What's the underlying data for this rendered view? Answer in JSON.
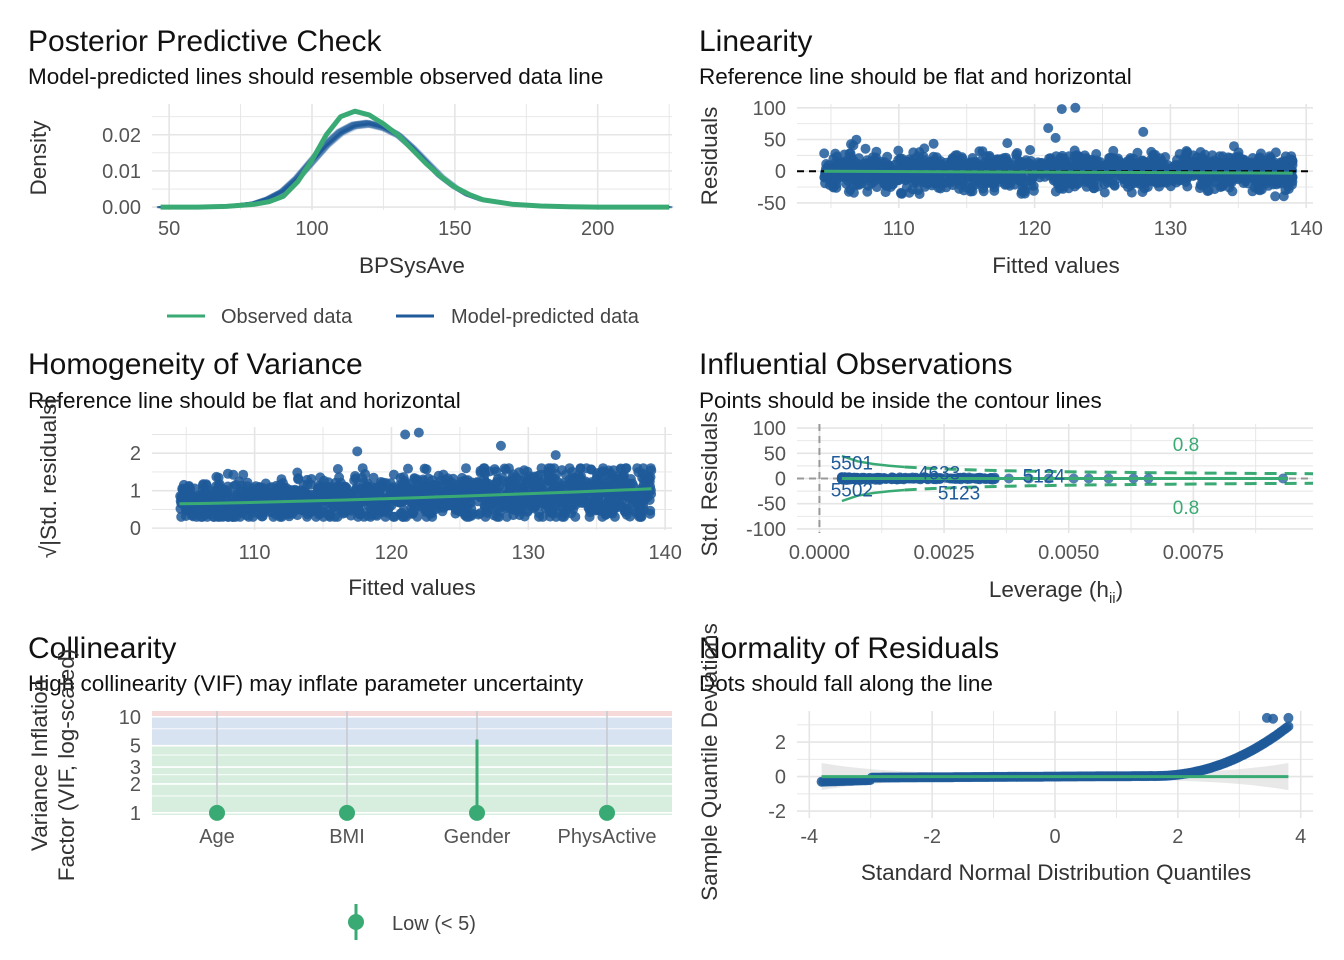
{
  "colors": {
    "observed": "#3AAA74",
    "predicted": "#1F5A9A",
    "points": "#1F5A9A",
    "reference": "#3AAA74",
    "grid": "#E5E5E5",
    "band_high": "#F2C9C9",
    "band_moderate": "#D7E3F1",
    "band_low": "#D7EEDF"
  },
  "chart_data": [
    {
      "id": "ppc",
      "type": "line",
      "title": "Posterior Predictive Check",
      "subtitle": "Model-predicted lines should resemble observed data line",
      "xlabel": "BPSysAve",
      "ylabel": "Density",
      "xlim": [
        44,
        226
      ],
      "ylim": [
        -0.0008,
        0.0285
      ],
      "xticks": [
        50,
        100,
        150,
        200
      ],
      "yticks": [
        0.0,
        0.01,
        0.02
      ],
      "ytick_labels": [
        "0.00",
        "0.01",
        "0.02"
      ],
      "series": [
        {
          "name": "Observed data",
          "x": [
            47,
            60,
            70,
            80,
            85,
            90,
            95,
            100,
            105,
            110,
            115,
            120,
            125,
            130,
            135,
            140,
            145,
            150,
            155,
            160,
            170,
            180,
            190,
            200,
            210,
            225
          ],
          "y": [
            0.0,
            0.0,
            0.0002,
            0.0008,
            0.0015,
            0.003,
            0.007,
            0.013,
            0.02,
            0.025,
            0.0265,
            0.0255,
            0.023,
            0.02,
            0.016,
            0.012,
            0.0085,
            0.0055,
            0.0035,
            0.002,
            0.0008,
            0.0003,
            0.0001,
            0.0,
            0.0,
            0.0
          ]
        },
        {
          "name": "Model-predicted data",
          "x": [
            47,
            60,
            70,
            80,
            85,
            90,
            95,
            100,
            105,
            110,
            115,
            120,
            125,
            130,
            135,
            140,
            145,
            150,
            155,
            160,
            170,
            180,
            190,
            200,
            210,
            225
          ],
          "y": [
            0.0,
            0.0,
            0.0003,
            0.0012,
            0.0025,
            0.0045,
            0.008,
            0.0125,
            0.017,
            0.0205,
            0.0225,
            0.023,
            0.022,
            0.02,
            0.0165,
            0.0125,
            0.0085,
            0.0055,
            0.0032,
            0.0018,
            0.0007,
            0.0002,
            0.0001,
            0.0,
            0.0,
            0.0
          ]
        }
      ],
      "legend": {
        "position": "bottom",
        "entries": [
          "Observed data",
          "Model-predicted data"
        ]
      }
    },
    {
      "id": "linearity",
      "type": "scatter",
      "title": "Linearity",
      "subtitle": "Reference line should be flat and horizontal",
      "xlabel": "Fitted values",
      "ylabel": "Residuals",
      "xlim": [
        102.5,
        140.5
      ],
      "ylim": [
        -58,
        106
      ],
      "xticks": [
        110,
        120,
        130,
        140
      ],
      "yticks": [
        -50,
        0,
        50,
        100
      ],
      "points": {
        "n": 2500,
        "x_range": [
          104.5,
          139
        ],
        "residual_sd": 14
      },
      "reference_line": {
        "x": [
          104.5,
          139
        ],
        "y": [
          0,
          -3
        ]
      },
      "hline": 0
    },
    {
      "id": "homogeneity",
      "type": "scatter",
      "title": "Homogeneity of Variance",
      "subtitle": "Reference line should be flat and horizontal",
      "xlabel": "Fitted values",
      "ylabel": "√|Std. residuals|",
      "xlim": [
        102.5,
        140.5
      ],
      "ylim": [
        -0.05,
        2.7
      ],
      "xticks": [
        110,
        120,
        130,
        140
      ],
      "yticks": [
        0,
        1,
        2
      ],
      "points": {
        "n": 2500,
        "x_range": [
          104.5,
          139
        ]
      },
      "reference_line": {
        "x": [
          104.5,
          139
        ],
        "y": [
          0.65,
          1.05
        ]
      }
    },
    {
      "id": "influential",
      "type": "scatter",
      "title": "Influential Observations",
      "subtitle": "Points should be inside the contour lines",
      "xlabel": "Leverage (h_ii)",
      "ylabel": "Std. Residuals",
      "xlim": [
        -0.00045,
        0.0099
      ],
      "ylim": [
        -108,
        108
      ],
      "xticks": [
        0,
        0.0025,
        0.005,
        0.0075
      ],
      "xtick_labels": [
        "0.0000",
        "0.0025",
        "0.0050",
        "0.0075"
      ],
      "yticks": [
        -100,
        -50,
        0,
        50,
        100
      ],
      "cook_contour_label": "0.8",
      "labeled_points": [
        {
          "label": "5501",
          "x": 0.00045,
          "y": 32
        },
        {
          "label": "4633",
          "x": 0.0022,
          "y": 12
        },
        {
          "label": "5124",
          "x": 0.0043,
          "y": 6
        },
        {
          "label": "5502",
          "x": 0.00045,
          "y": -22
        },
        {
          "label": "5123",
          "x": 0.0026,
          "y": -28
        }
      ]
    },
    {
      "id": "collinearity",
      "type": "bar",
      "title": "Collinearity",
      "subtitle": "High collinearity (VIF) may inflate parameter uncertainty",
      "ylabel": "Variance Inflation\nFactor (VIF, log-scaled)",
      "categories": [
        "Age",
        "BMI",
        "Gender",
        "PhysActive"
      ],
      "values": [
        1.0,
        1.0,
        1.0,
        1.0
      ],
      "ci_upper": [
        1.0,
        1.0,
        5.8,
        1.0
      ],
      "yscale": "log",
      "ylim": [
        0.95,
        11.5
      ],
      "yticks": [
        1,
        2,
        3,
        5,
        10
      ],
      "legend": {
        "position": "bottom",
        "entries": [
          "Low (< 5)"
        ]
      }
    },
    {
      "id": "normality",
      "type": "scatter",
      "title": "Normality of Residuals",
      "subtitle": "Dots should fall along the line",
      "xlabel": "Standard Normal Distribution Quantiles",
      "ylabel": "Sample Quantile Deviations",
      "xlim": [
        -4.2,
        4.2
      ],
      "ylim": [
        -2.4,
        3.8
      ],
      "xticks": [
        -4,
        -2,
        0,
        2,
        4
      ],
      "yticks": [
        -2,
        0,
        2
      ],
      "reference_line": {
        "x": [
          -3.8,
          3.8
        ],
        "y": [
          0,
          0
        ]
      }
    }
  ]
}
